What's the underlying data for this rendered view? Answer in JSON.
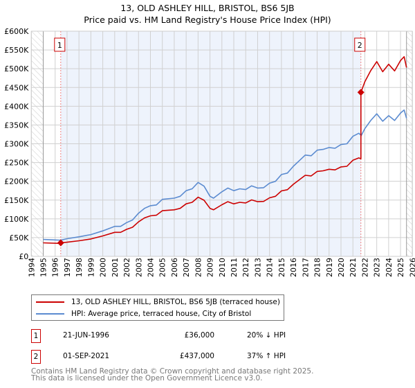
{
  "chart_data": {
    "type": "line",
    "title": "13, OLD ASHLEY HILL, BRISTOL, BS6 5JB",
    "subtitle": "Price paid vs. HM Land Registry's House Price Index (HPI)",
    "xlim": [
      1994,
      2026
    ],
    "ylim": [
      0,
      600000
    ],
    "x_ticks": [
      "1994",
      "1995",
      "1996",
      "1997",
      "1998",
      "1999",
      "2000",
      "2001",
      "2002",
      "2003",
      "2004",
      "2005",
      "2006",
      "2007",
      "2008",
      "2009",
      "2010",
      "2011",
      "2012",
      "2013",
      "2014",
      "2015",
      "2016",
      "2017",
      "2018",
      "2019",
      "2020",
      "2021",
      "2022",
      "2023",
      "2024",
      "2025",
      "2026"
    ],
    "y_ticks": [
      {
        "v": 0,
        "label": "£0"
      },
      {
        "v": 50000,
        "label": "£50K"
      },
      {
        "v": 100000,
        "label": "£100K"
      },
      {
        "v": 150000,
        "label": "£150K"
      },
      {
        "v": 200000,
        "label": "£200K"
      },
      {
        "v": 250000,
        "label": "£250K"
      },
      {
        "v": 300000,
        "label": "£300K"
      },
      {
        "v": 350000,
        "label": "£350K"
      },
      {
        "v": 400000,
        "label": "£400K"
      },
      {
        "v": 450000,
        "label": "£450K"
      },
      {
        "v": 500000,
        "label": "£500K"
      },
      {
        "v": 550000,
        "label": "£550K"
      },
      {
        "v": 600000,
        "label": "£600K"
      }
    ],
    "grid": true,
    "data_range": [
      1995,
      2025.5
    ],
    "series": [
      {
        "name": "13, OLD ASHLEY HILL, BRISTOL, BS6 5JB (terraced house)",
        "color": "#cc0000",
        "x": [
          1995,
          1996.47,
          1996.47,
          1997,
          1998,
          1999,
          2000,
          2001,
          2001.5,
          2002,
          2002.5,
          2003,
          2003.5,
          2004,
          2004.5,
          2005,
          2006,
          2006.5,
          2007,
          2007.5,
          2008,
          2008.5,
          2009,
          2009.3,
          2010,
          2010.5,
          2011,
          2011.5,
          2012,
          2012.5,
          2013,
          2013.5,
          2014,
          2014.5,
          2015,
          2015.5,
          2016,
          2016.5,
          2017,
          2017.5,
          2018,
          2018.5,
          2019,
          2019.5,
          2020,
          2020.5,
          2021,
          2021.5,
          2021.67,
          2021.67,
          2022,
          2022.5,
          2023,
          2023.5,
          2024,
          2024.5,
          2025,
          2025.3,
          2025.5
        ],
        "y": [
          36000,
          34500,
          36000,
          37600,
          41600,
          46400,
          54400,
          64000,
          64000,
          72000,
          77600,
          92000,
          102400,
          108000,
          109600,
          121600,
          124000,
          128000,
          140000,
          144000,
          157600,
          149600,
          128000,
          124000,
          137600,
          145600,
          140000,
          144000,
          142400,
          150400,
          145600,
          146400,
          156000,
          160000,
          174400,
          177600,
          192000,
          204000,
          216000,
          214400,
          226400,
          228000,
          232000,
          230400,
          238400,
          240000,
          256000,
          262400,
          260000,
          437000,
          465000,
          495000,
          519000,
          492000,
          512000,
          494000,
          522000,
          532000,
          503000
        ]
      },
      {
        "name": "HPI: Average price, terraced house, City of Bristol",
        "color": "#5b8bd0",
        "x": [
          1995,
          1996.47,
          1997,
          1998,
          1999,
          2000,
          2001,
          2001.5,
          2002,
          2002.5,
          2003,
          2003.5,
          2004,
          2004.5,
          2005,
          2006,
          2006.5,
          2007,
          2007.5,
          2008,
          2008.5,
          2009,
          2009.3,
          2010,
          2010.5,
          2011,
          2011.5,
          2012,
          2012.5,
          2013,
          2013.5,
          2014,
          2014.5,
          2015,
          2015.5,
          2016,
          2016.5,
          2017,
          2017.5,
          2018,
          2018.5,
          2019,
          2019.5,
          2020,
          2020.5,
          2021,
          2021.5,
          2021.7,
          2022,
          2022.5,
          2023,
          2023.5,
          2024,
          2024.5,
          2025,
          2025.3,
          2025.5
        ],
        "y": [
          45000,
          43000,
          47000,
          52000,
          58000,
          68000,
          80000,
          80000,
          90000,
          97000,
          115000,
          128000,
          135000,
          137000,
          152000,
          155000,
          160000,
          175000,
          180000,
          197000,
          187000,
          160000,
          155000,
          172000,
          182000,
          175000,
          180000,
          178000,
          188000,
          182000,
          183000,
          195000,
          200000,
          218000,
          222000,
          240000,
          255000,
          270000,
          268000,
          283000,
          285000,
          290000,
          288000,
          298000,
          300000,
          320000,
          328000,
          322000,
          340000,
          362000,
          380000,
          360000,
          375000,
          362000,
          382000,
          390000,
          368000
        ]
      }
    ],
    "sales": [
      {
        "label": "1",
        "x": 1996.47,
        "y": 36000
      },
      {
        "label": "2",
        "x": 2021.67,
        "y": 437000
      }
    ],
    "legend_position": "below"
  },
  "transactions": [
    {
      "num": "1",
      "date": "21-JUN-1996",
      "price": "£36,000",
      "hpi": "20% ↓ HPI"
    },
    {
      "num": "2",
      "date": "01-SEP-2021",
      "price": "£437,000",
      "hpi": "37% ↑ HPI"
    }
  ],
  "footer": [
    "Contains HM Land Registry data © Crown copyright and database right 2025.",
    "This data is licensed under the Open Government Licence v3.0."
  ]
}
